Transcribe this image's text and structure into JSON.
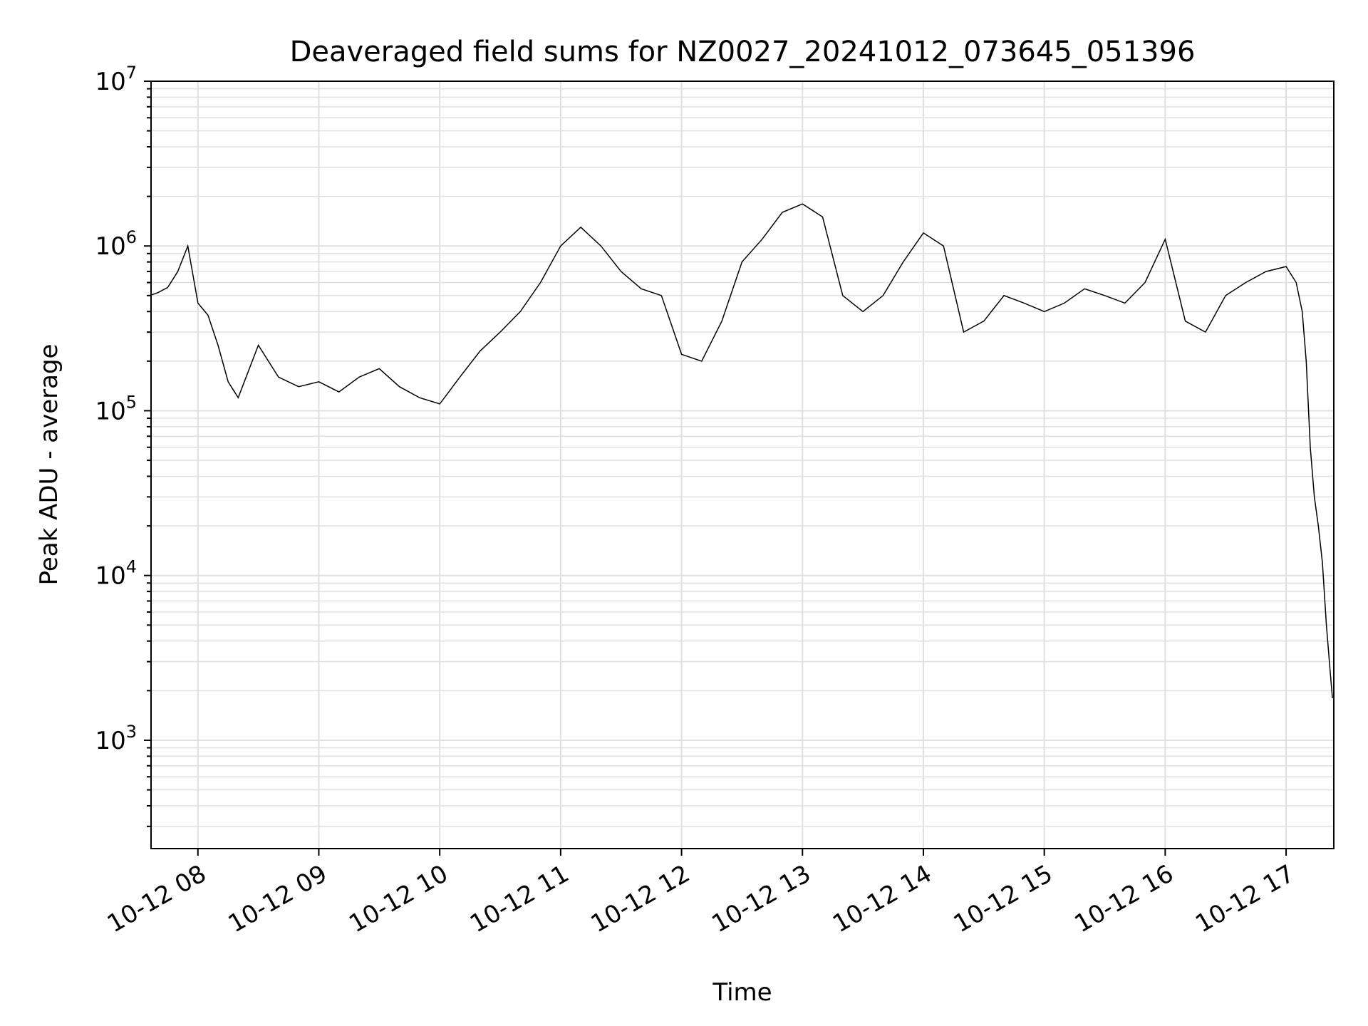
{
  "chart_data": {
    "type": "line",
    "title": "Deaveraged field sums for NZ0027_20241012_073645_051396",
    "xlabel": "Time",
    "ylabel": "Peak ADU - average",
    "y_scale": "log",
    "ylim": [
      220,
      10000000
    ],
    "xlim": [
      "2024-10-12 07:36:45",
      "2024-10-12 17:23:40"
    ],
    "x_ticks": [
      {
        "label": "10-12 08",
        "time": "2024-10-12 08:00"
      },
      {
        "label": "10-12 09",
        "time": "2024-10-12 09:00"
      },
      {
        "label": "10-12 10",
        "time": "2024-10-12 10:00"
      },
      {
        "label": "10-12 11",
        "time": "2024-10-12 11:00"
      },
      {
        "label": "10-12 12",
        "time": "2024-10-12 12:00"
      },
      {
        "label": "10-12 13",
        "time": "2024-10-12 13:00"
      },
      {
        "label": "10-12 14",
        "time": "2024-10-12 14:00"
      },
      {
        "label": "10-12 15",
        "time": "2024-10-12 15:00"
      },
      {
        "label": "10-12 16",
        "time": "2024-10-12 16:00"
      },
      {
        "label": "10-12 17",
        "time": "2024-10-12 17:00"
      }
    ],
    "y_ticks": [
      {
        "base": "10",
        "exp": "3",
        "value": 1000
      },
      {
        "base": "10",
        "exp": "4",
        "value": 10000
      },
      {
        "base": "10",
        "exp": "5",
        "value": 100000
      },
      {
        "base": "10",
        "exp": "6",
        "value": 1000000
      },
      {
        "base": "10",
        "exp": "7",
        "value": 10000000
      }
    ],
    "grid": true,
    "line_color": "#000000",
    "grid_color": "#e0e0e0",
    "series": [
      {
        "x": [
          "07:36",
          "07:40",
          "07:45",
          "07:50",
          "07:55",
          "08:00",
          "08:05",
          "08:10",
          "08:15",
          "08:20",
          "08:30",
          "08:40",
          "08:50",
          "09:00",
          "09:10",
          "09:20",
          "09:30",
          "09:40",
          "09:50",
          "10:00",
          "10:10",
          "10:20",
          "10:30",
          "10:40",
          "10:50",
          "11:00",
          "11:10",
          "11:20",
          "11:30",
          "11:40",
          "11:50",
          "12:00",
          "12:10",
          "12:20",
          "12:30",
          "12:40",
          "12:50",
          "13:00",
          "13:10",
          "13:20",
          "13:30",
          "13:40",
          "13:50",
          "14:00",
          "14:10",
          "14:20",
          "14:30",
          "14:40",
          "14:50",
          "15:00",
          "15:10",
          "15:20",
          "15:30",
          "15:40",
          "15:50",
          "16:00",
          "16:10",
          "16:20",
          "16:30",
          "16:40",
          "16:50",
          "17:00",
          "17:05",
          "17:08",
          "17:10",
          "17:12",
          "17:14",
          "17:16",
          "17:18",
          "17:20",
          "17:22",
          "17:23"
        ],
        "y": [
          500000,
          520000,
          560000,
          700000,
          1000000,
          450000,
          380000,
          250000,
          150000,
          120000,
          250000,
          160000,
          140000,
          150000,
          130000,
          160000,
          180000,
          140000,
          120000,
          110000,
          160000,
          230000,
          300000,
          400000,
          600000,
          1000000,
          1300000,
          1000000,
          700000,
          550000,
          500000,
          220000,
          200000,
          350000,
          800000,
          1100000,
          1600000,
          1800000,
          1500000,
          500000,
          400000,
          500000,
          800000,
          1200000,
          1000000,
          300000,
          350000,
          500000,
          450000,
          400000,
          450000,
          550000,
          500000,
          450000,
          600000,
          1100000,
          350000,
          300000,
          500000,
          600000,
          700000,
          750000,
          600000,
          400000,
          200000,
          60000,
          30000,
          20000,
          12000,
          5000,
          2500,
          1800
        ]
      }
    ]
  }
}
